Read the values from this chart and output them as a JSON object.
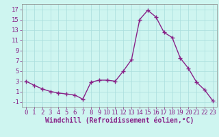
{
  "x": [
    0,
    1,
    2,
    3,
    4,
    5,
    6,
    7,
    8,
    9,
    10,
    11,
    12,
    13,
    14,
    15,
    16,
    17,
    18,
    19,
    20,
    21,
    22,
    23
  ],
  "y": [
    3.0,
    2.2,
    1.5,
    1.0,
    0.7,
    0.5,
    0.3,
    -0.5,
    2.8,
    3.2,
    3.2,
    3.0,
    5.0,
    7.2,
    15.0,
    16.8,
    15.5,
    12.5,
    11.5,
    7.5,
    5.5,
    2.8,
    1.3,
    -0.8
  ],
  "line_color": "#882288",
  "marker": "+",
  "marker_size": 4,
  "linewidth": 1.0,
  "background_color": "#cef5f0",
  "grid_color": "#aadddd",
  "tick_color": "#882288",
  "label_color": "#882288",
  "xlabel": "Windchill (Refroidissement éolien,°C)",
  "ylim": [
    -2,
    18
  ],
  "xlim": [
    -0.5,
    23.5
  ],
  "yticks": [
    -1,
    1,
    3,
    5,
    7,
    9,
    11,
    13,
    15,
    17
  ],
  "xticks": [
    0,
    1,
    2,
    3,
    4,
    5,
    6,
    7,
    8,
    9,
    10,
    11,
    12,
    13,
    14,
    15,
    16,
    17,
    18,
    19,
    20,
    21,
    22,
    23
  ],
  "font_family": "monospace",
  "xlabel_fontsize": 7,
  "tick_fontsize": 6.5
}
